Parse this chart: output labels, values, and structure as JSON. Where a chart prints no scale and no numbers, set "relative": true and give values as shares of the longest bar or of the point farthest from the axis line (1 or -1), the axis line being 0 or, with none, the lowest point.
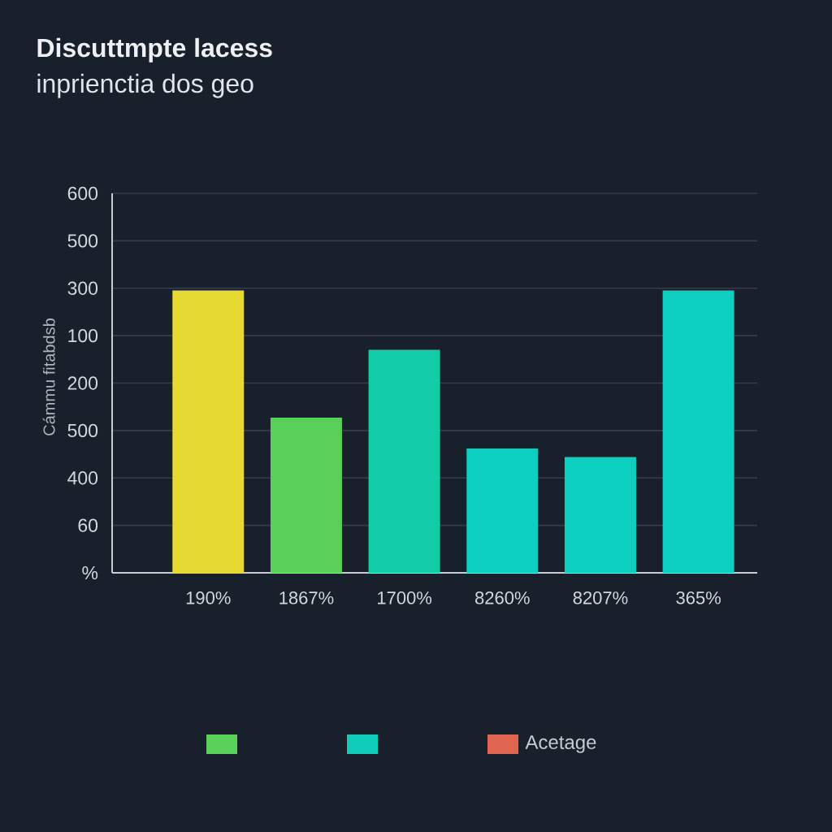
{
  "chart_data": {
    "type": "bar",
    "title": "Discuttmpte lacess",
    "subtitle": "inprienctia dos geo",
    "ylabel": "Cámmu fitabdsb",
    "categories": [
      "190%",
      "1867%",
      "1700%",
      "8260%",
      "8207%",
      "365%"
    ],
    "series": [
      {
        "color": "#58d05a",
        "colors": [
          "#e6d932",
          "#58d05a",
          null,
          null,
          null,
          null
        ],
        "values": [
          1,
          0.55,
          null,
          null,
          null,
          null
        ]
      },
      {
        "color": "#0fcdb8",
        "colors": [
          null,
          null,
          "#12cca8",
          "#0dcfbf",
          "#0dcfbf",
          "#0dcfbf"
        ],
        "values": [
          null,
          null,
          0.79,
          0.44,
          0.41,
          1
        ]
      },
      {
        "name": "Acetage",
        "color": "#e0654f",
        "values": [
          null,
          null,
          null,
          null,
          null,
          null
        ]
      }
    ],
    "relative": true,
    "annotations": [
      "%",
      "60",
      "400",
      "500",
      "200",
      "100",
      "300",
      "500",
      "600"
    ],
    "grid": "y",
    "legend": "bottom"
  }
}
